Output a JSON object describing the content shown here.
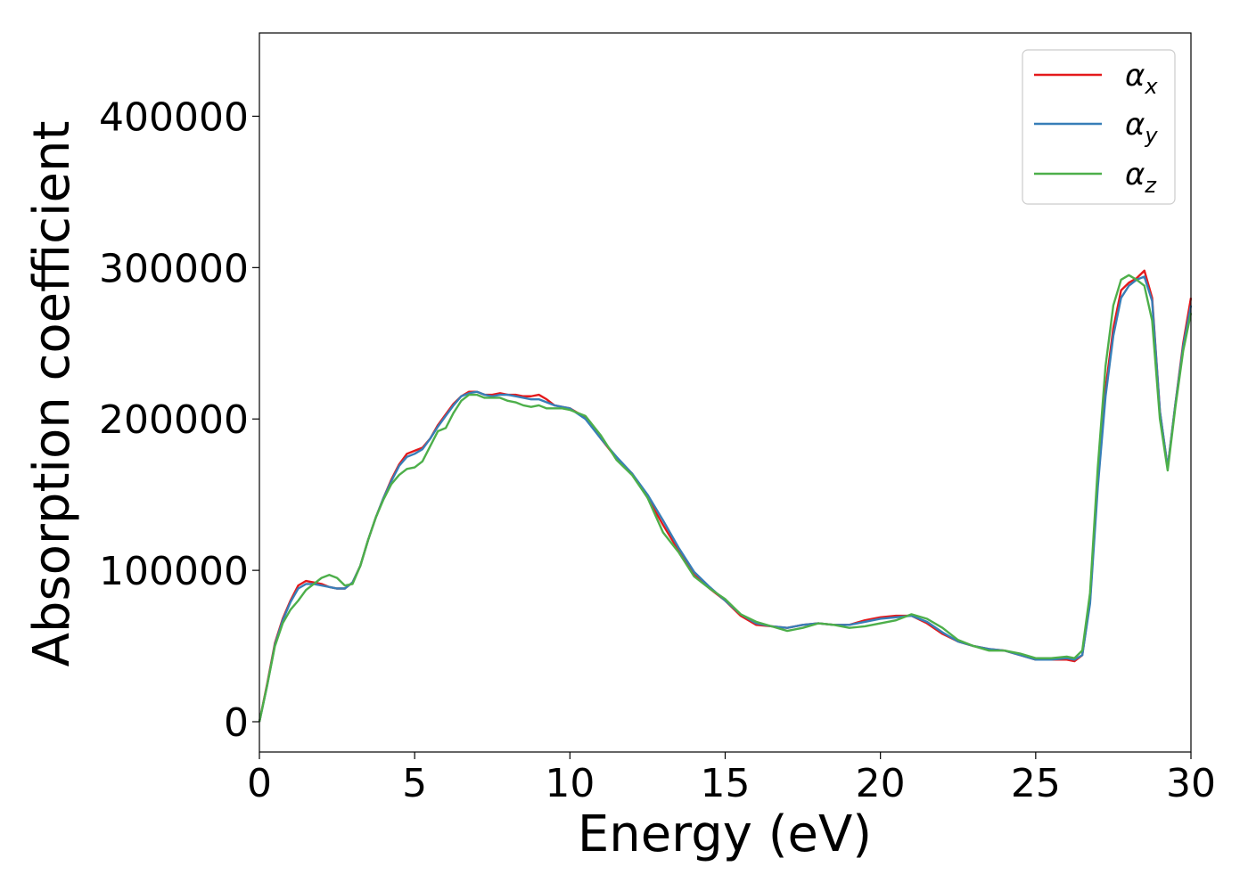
{
  "chart_data": {
    "type": "line",
    "xlabel": "Energy (eV)",
    "ylabel": "Absorption coefficient",
    "xlim": [
      0,
      30
    ],
    "ylim": [
      -20000,
      455000
    ],
    "xticks": [
      0,
      5,
      10,
      15,
      20,
      25,
      30
    ],
    "yticks": [
      0,
      100000,
      200000,
      300000,
      400000
    ],
    "grid": false,
    "legend_position": "top-right",
    "series": [
      {
        "name": "α",
        "subscript": "x",
        "color": "#e41a1c",
        "x": [
          0,
          0.25,
          0.5,
          0.75,
          1.0,
          1.25,
          1.5,
          1.75,
          2.0,
          2.25,
          2.5,
          2.75,
          3.0,
          3.25,
          3.5,
          3.75,
          4.0,
          4.25,
          4.5,
          4.75,
          5.0,
          5.25,
          5.5,
          5.75,
          6.0,
          6.25,
          6.5,
          6.75,
          7.0,
          7.25,
          7.5,
          7.75,
          8.0,
          8.25,
          8.5,
          8.75,
          9.0,
          9.25,
          9.5,
          9.75,
          10.0,
          10.5,
          11.0,
          11.5,
          12.0,
          12.5,
          13.0,
          13.5,
          14.0,
          14.5,
          15.0,
          15.5,
          16.0,
          16.5,
          17.0,
          17.5,
          18.0,
          18.5,
          19.0,
          19.5,
          20.0,
          20.5,
          21.0,
          21.5,
          22.0,
          22.5,
          23.0,
          23.5,
          24.0,
          24.5,
          25.0,
          25.5,
          26.0,
          26.25,
          26.5,
          26.75,
          27.0,
          27.25,
          27.5,
          27.75,
          28.0,
          28.25,
          28.5,
          28.75,
          29.0,
          29.25,
          29.5,
          29.75,
          30.0
        ],
        "y": [
          0,
          25000,
          52000,
          68000,
          80000,
          90000,
          93000,
          92000,
          91000,
          89000,
          88000,
          88000,
          92000,
          103000,
          120000,
          135000,
          148000,
          160000,
          170000,
          177000,
          179000,
          181000,
          187000,
          196000,
          203000,
          210000,
          215000,
          218000,
          218000,
          216000,
          216000,
          217000,
          216000,
          216000,
          215000,
          215000,
          216000,
          213000,
          209000,
          208000,
          207000,
          201000,
          187000,
          174000,
          164000,
          148000,
          130000,
          113000,
          97000,
          88000,
          80000,
          70000,
          64000,
          63000,
          62000,
          64000,
          65000,
          64000,
          64000,
          67000,
          69000,
          70000,
          70000,
          65000,
          58000,
          53000,
          50000,
          48000,
          47000,
          44000,
          41000,
          41000,
          41000,
          40000,
          44000,
          80000,
          160000,
          220000,
          260000,
          285000,
          290000,
          293000,
          298000,
          280000,
          205000,
          168000,
          210000,
          250000,
          280000
        ]
      },
      {
        "name": "α",
        "subscript": "y",
        "color": "#377eb8",
        "x": [
          0,
          0.25,
          0.5,
          0.75,
          1.0,
          1.25,
          1.5,
          1.75,
          2.0,
          2.25,
          2.5,
          2.75,
          3.0,
          3.25,
          3.5,
          3.75,
          4.0,
          4.25,
          4.5,
          4.75,
          5.0,
          5.25,
          5.5,
          5.75,
          6.0,
          6.25,
          6.5,
          6.75,
          7.0,
          7.25,
          7.5,
          7.75,
          8.0,
          8.25,
          8.5,
          8.75,
          9.0,
          9.25,
          9.5,
          9.75,
          10.0,
          10.5,
          11.0,
          11.5,
          12.0,
          12.5,
          13.0,
          13.5,
          14.0,
          14.5,
          15.0,
          15.5,
          16.0,
          16.5,
          17.0,
          17.5,
          18.0,
          18.5,
          19.0,
          19.5,
          20.0,
          20.5,
          21.0,
          21.5,
          22.0,
          22.5,
          23.0,
          23.5,
          24.0,
          24.5,
          25.0,
          25.5,
          26.0,
          26.25,
          26.5,
          26.75,
          27.0,
          27.25,
          27.5,
          27.75,
          28.0,
          28.25,
          28.5,
          28.75,
          29.0,
          29.25,
          29.5,
          29.75,
          30.0
        ],
        "y": [
          0,
          24000,
          51000,
          67000,
          79000,
          88000,
          91000,
          91000,
          90000,
          89000,
          88000,
          88000,
          92000,
          103000,
          120000,
          135000,
          148000,
          159000,
          169000,
          175000,
          177000,
          180000,
          187000,
          195000,
          202000,
          209000,
          215000,
          217000,
          218000,
          216000,
          215000,
          216000,
          216000,
          215000,
          214000,
          213000,
          213000,
          211000,
          209000,
          208000,
          207000,
          200000,
          187000,
          175000,
          164000,
          150000,
          133000,
          115000,
          99000,
          89000,
          80000,
          71000,
          65000,
          63000,
          62000,
          64000,
          65000,
          64000,
          64000,
          66000,
          68000,
          69000,
          70000,
          66000,
          59000,
          53000,
          50000,
          48000,
          47000,
          44000,
          41000,
          41000,
          42000,
          41000,
          44000,
          78000,
          155000,
          215000,
          255000,
          280000,
          288000,
          292000,
          294000,
          278000,
          205000,
          168000,
          210000,
          248000,
          275000
        ]
      },
      {
        "name": "α",
        "subscript": "z",
        "color": "#4daf4a",
        "x": [
          0,
          0.25,
          0.5,
          0.75,
          1.0,
          1.25,
          1.5,
          1.75,
          2.0,
          2.25,
          2.5,
          2.75,
          3.0,
          3.25,
          3.5,
          3.75,
          4.0,
          4.25,
          4.5,
          4.75,
          5.0,
          5.25,
          5.5,
          5.75,
          6.0,
          6.25,
          6.5,
          6.75,
          7.0,
          7.25,
          7.5,
          7.75,
          8.0,
          8.25,
          8.5,
          8.75,
          9.0,
          9.25,
          9.5,
          9.75,
          10.0,
          10.5,
          11.0,
          11.5,
          12.0,
          12.5,
          13.0,
          13.5,
          14.0,
          14.5,
          15.0,
          15.5,
          16.0,
          16.5,
          17.0,
          17.5,
          18.0,
          18.5,
          19.0,
          19.5,
          20.0,
          20.5,
          21.0,
          21.5,
          22.0,
          22.5,
          23.0,
          23.5,
          24.0,
          24.5,
          25.0,
          25.5,
          26.0,
          26.25,
          26.5,
          26.75,
          27.0,
          27.25,
          27.5,
          27.75,
          28.0,
          28.25,
          28.5,
          28.75,
          29.0,
          29.25,
          29.5,
          29.75,
          30.0
        ],
        "y": [
          0,
          24000,
          50000,
          65000,
          74000,
          80000,
          87000,
          91000,
          95000,
          97000,
          95000,
          90000,
          91000,
          103000,
          120000,
          135000,
          147000,
          157000,
          163000,
          167000,
          168000,
          172000,
          182000,
          192000,
          194000,
          204000,
          212000,
          216000,
          216000,
          214000,
          214000,
          214000,
          212000,
          211000,
          209000,
          208000,
          209000,
          207000,
          207000,
          207000,
          206000,
          202000,
          189000,
          173000,
          163000,
          148000,
          125000,
          112000,
          96000,
          88000,
          81000,
          71000,
          66000,
          63000,
          60000,
          62000,
          65000,
          64000,
          62000,
          63000,
          65000,
          67000,
          71000,
          68000,
          62000,
          54000,
          50000,
          47000,
          47000,
          45000,
          42000,
          42000,
          43000,
          42000,
          47000,
          85000,
          168000,
          235000,
          275000,
          292000,
          295000,
          292000,
          288000,
          265000,
          200000,
          166000,
          208000,
          245000,
          270000
        ]
      }
    ]
  }
}
